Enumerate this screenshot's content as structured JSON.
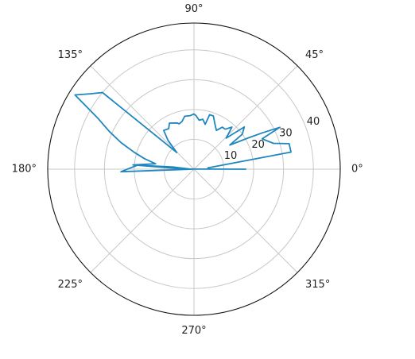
{
  "chart_data": {
    "type": "line",
    "projection": "polar",
    "title": "",
    "rmax": 49,
    "r_ticks": [
      10,
      20,
      30,
      40
    ],
    "r_tick_labels": [
      "10",
      "20",
      "30",
      "40"
    ],
    "theta_ticks": [
      0,
      45,
      90,
      135,
      180,
      225,
      270,
      315
    ],
    "theta_tick_labels": [
      "0°",
      "45°",
      "90°",
      "135°",
      "180°",
      "225°",
      "270°",
      "315°"
    ],
    "grid": true,
    "series": [
      {
        "color": "#1f86c0",
        "theta": [
          5,
          10,
          15,
          18,
          24,
          26,
          28,
          30,
          34,
          36,
          40,
          44,
          48,
          52,
          56,
          60,
          66,
          70,
          74,
          76,
          80,
          84,
          88,
          90,
          94,
          98,
          100,
          104,
          108,
          110,
          118,
          122,
          128,
          132,
          136,
          140,
          144,
          148,
          152,
          156,
          160,
          164,
          168,
          172,
          176,
          178,
          180,
          182,
          176,
          174,
          178,
          0
        ],
        "r": [
          4.5,
          33.0,
          33.0,
          28.0,
          25.0,
          32.0,
          26.0,
          21.0,
          14.5,
          20.0,
          22.0,
          15.0,
          19.0,
          17.0,
          17.0,
          15.0,
          17.0,
          19.0,
          19.0,
          15.5,
          17.0,
          16.5,
          18.0,
          18.5,
          18.0,
          18.0,
          18.0,
          16.5,
          16.0,
          16.5,
          17.5,
          16.0,
          16.5,
          13.0,
          8.0,
          40.0,
          43.0,
          47.0,
          36.5,
          31.0,
          26.0,
          21.0,
          17.0,
          13.0,
          20.5,
          5.0,
          0.5,
          24.5,
          19.0,
          7.0,
          1.5,
          17.5
        ]
      }
    ]
  }
}
